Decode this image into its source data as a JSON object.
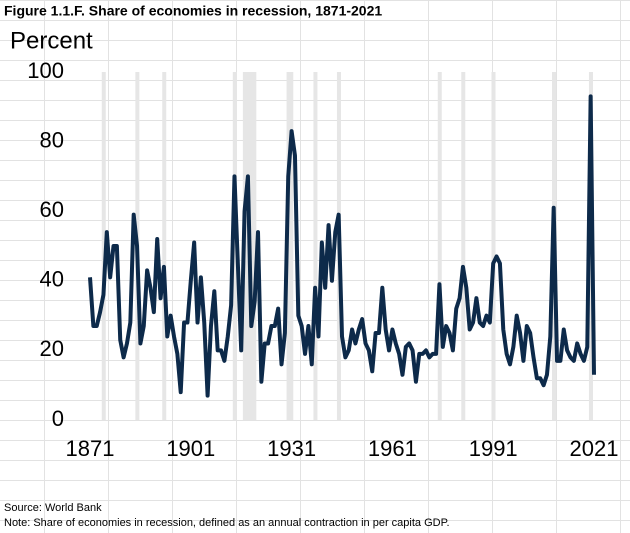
{
  "chart_data": {
    "type": "line",
    "title": "Figure 1.1.F. Share of economies in recession, 1871-2021",
    "y_axis_label": "Percent",
    "source": "Source: World Bank",
    "note": "Note: Share of economies in recession, defined as an annual contraction in per capita GDP.",
    "x": [
      1871,
      1872,
      1873,
      1874,
      1875,
      1876,
      1877,
      1878,
      1879,
      1880,
      1881,
      1882,
      1883,
      1884,
      1885,
      1886,
      1887,
      1888,
      1889,
      1890,
      1891,
      1892,
      1893,
      1894,
      1895,
      1896,
      1897,
      1898,
      1899,
      1900,
      1901,
      1902,
      1903,
      1904,
      1905,
      1906,
      1907,
      1908,
      1909,
      1910,
      1911,
      1912,
      1913,
      1914,
      1915,
      1916,
      1917,
      1918,
      1919,
      1920,
      1921,
      1922,
      1923,
      1924,
      1925,
      1926,
      1927,
      1928,
      1929,
      1930,
      1931,
      1932,
      1933,
      1934,
      1935,
      1936,
      1937,
      1938,
      1939,
      1940,
      1941,
      1942,
      1943,
      1944,
      1945,
      1946,
      1947,
      1948,
      1949,
      1950,
      1951,
      1952,
      1953,
      1954,
      1955,
      1956,
      1957,
      1958,
      1959,
      1960,
      1961,
      1962,
      1963,
      1964,
      1965,
      1966,
      1967,
      1968,
      1969,
      1970,
      1971,
      1972,
      1973,
      1974,
      1975,
      1976,
      1977,
      1978,
      1979,
      1980,
      1981,
      1982,
      1983,
      1984,
      1985,
      1986,
      1987,
      1988,
      1989,
      1990,
      1991,
      1992,
      1993,
      1994,
      1995,
      1996,
      1997,
      1998,
      1999,
      2000,
      2001,
      2002,
      2003,
      2004,
      2005,
      2006,
      2007,
      2008,
      2009,
      2010,
      2011,
      2012,
      2013,
      2014,
      2015,
      2016,
      2017,
      2018,
      2019,
      2020,
      2021
    ],
    "series": [
      {
        "name": "Share of economies in recession",
        "color": "#0d2a4a",
        "values": [
          41,
          27,
          27,
          31,
          36,
          54,
          41,
          50,
          50,
          23,
          18,
          22,
          28,
          59,
          50,
          22,
          27,
          43,
          38,
          31,
          52,
          35,
          44,
          24,
          30,
          24,
          19,
          8,
          28,
          28,
          40,
          51,
          28,
          41,
          28,
          7,
          27,
          37,
          20,
          20,
          17,
          24,
          33,
          70,
          45,
          20,
          60,
          70,
          27,
          34,
          54,
          11,
          22,
          22,
          27,
          27,
          32,
          16,
          25,
          70,
          83,
          76,
          30,
          27,
          19,
          27,
          16,
          38,
          24,
          51,
          38,
          56,
          40,
          54,
          59,
          24,
          18,
          20,
          26,
          22,
          26,
          29,
          22,
          20,
          14,
          25,
          25,
          38,
          26,
          20,
          26,
          22,
          19,
          13,
          21,
          22,
          20,
          11,
          19,
          19,
          20,
          18,
          19,
          19,
          39,
          21,
          27,
          25,
          20,
          32,
          35,
          44,
          38,
          26,
          28,
          35,
          28,
          27,
          30,
          28,
          45,
          47,
          45,
          26,
          19,
          16,
          21,
          30,
          25,
          17,
          27,
          25,
          18,
          12,
          12,
          10,
          13,
          24,
          61,
          17,
          17,
          26,
          20,
          18,
          17,
          22,
          19,
          17,
          21,
          93,
          13
        ]
      }
    ],
    "shaded_ranges": [
      [
        1875,
        1876
      ],
      [
        1885,
        1886
      ],
      [
        1893,
        1894
      ],
      [
        1914,
        1915
      ],
      [
        1917,
        1921
      ],
      [
        1930,
        1932
      ],
      [
        1938,
        1939
      ],
      [
        1945,
        1946
      ],
      [
        1975,
        1976
      ],
      [
        1982,
        1983
      ],
      [
        1991,
        1992
      ],
      [
        2009,
        2010
      ],
      [
        2020,
        2021
      ]
    ],
    "shade_color": "#e6e6e6",
    "xlim": [
      1871,
      2021
    ],
    "xticks": [
      1871,
      1901,
      1931,
      1961,
      1991,
      2021
    ],
    "ylim": [
      0,
      100
    ],
    "yticks": [
      0,
      20,
      40,
      60,
      80,
      100
    ]
  }
}
